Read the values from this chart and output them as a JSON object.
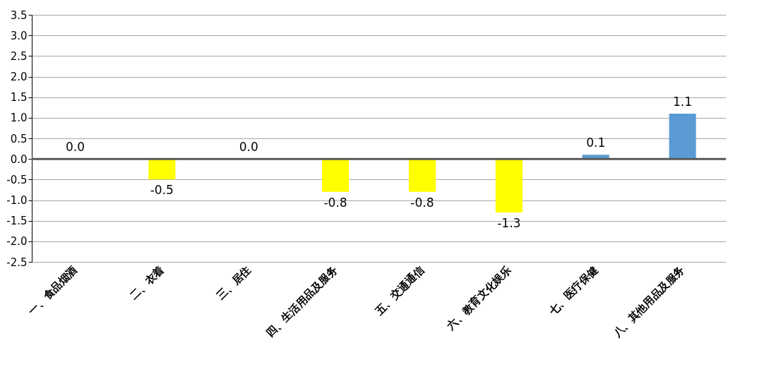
{
  "chart_data": {
    "type": "bar",
    "categories": [
      "一、食品烟酒",
      "二、衣着",
      "三、居住",
      "四、生活用品及服务",
      "五、交通通信",
      "六、教育文化娱乐",
      "七、医疗保健",
      "八、其他用品及服务"
    ],
    "values": [
      0.0,
      -0.5,
      0.0,
      -0.8,
      -0.8,
      -1.3,
      0.1,
      1.1
    ],
    "value_labels": [
      "0.0",
      "-0.5",
      "0.0",
      "-0.8",
      "-0.8",
      "-1.3",
      "0.1",
      "1.1"
    ],
    "colors": [
      "#ffff00",
      "#ffff00",
      "#ffff00",
      "#ffff00",
      "#ffff00",
      "#ffff00",
      "#5b9bd5",
      "#5b9bd5"
    ],
    "ylim": [
      -2.5,
      3.5
    ],
    "yticks": [
      {
        "value": -2.5,
        "label": "-2.5"
      },
      {
        "value": -2.0,
        "label": "-2.0"
      },
      {
        "value": -1.5,
        "label": "-1.5"
      },
      {
        "value": -1.0,
        "label": "-1.0"
      },
      {
        "value": -0.5,
        "label": "-0.5"
      },
      {
        "value": 0,
        "label": "0.0"
      },
      {
        "value": 0.5,
        "label": "0.5"
      },
      {
        "value": 1.0,
        "label": "1.0"
      },
      {
        "value": 1.5,
        "label": "1.5"
      },
      {
        "value": 2.0,
        "label": "2.0"
      },
      {
        "value": 2.5,
        "label": "2.5"
      },
      {
        "value": 3.0,
        "label": "3.0"
      },
      {
        "value": 3.5,
        "label": "3.5"
      }
    ],
    "grid": "y",
    "legend": false
  }
}
